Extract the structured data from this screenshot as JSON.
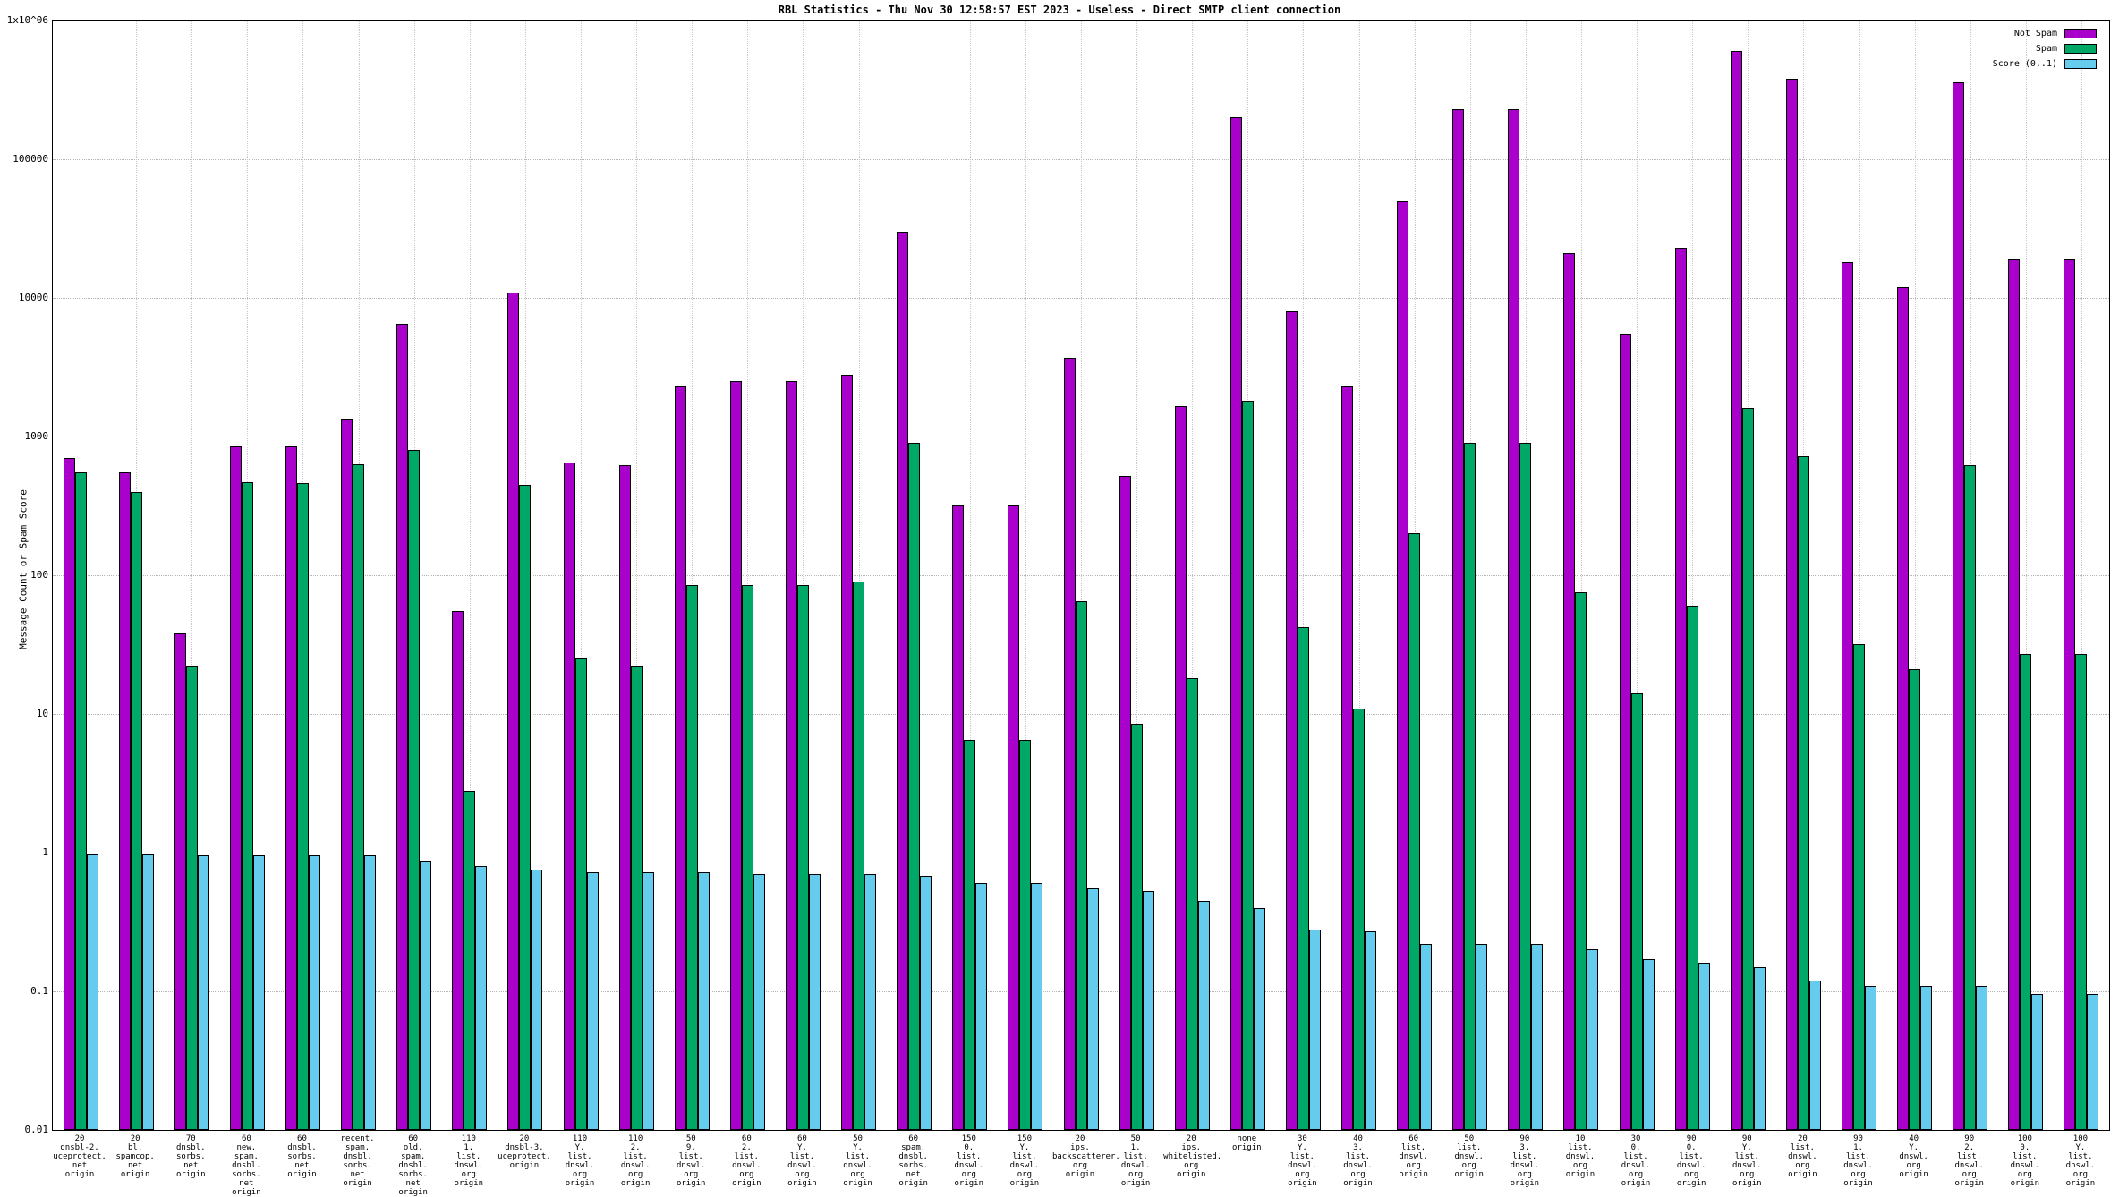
{
  "chart_data": {
    "type": "bar",
    "title": "RBL Statistics - Thu Nov 30 12:58:57 EST 2023 - Useless - Direct SMTP client connection",
    "ylabel": "Message Count or Spam Score",
    "xlabel": "",
    "y_scale": "log",
    "ylim": [
      0.01,
      1000000
    ],
    "ytick_labels": [
      "0.01",
      "0.1",
      "1",
      "10",
      "100",
      "1000",
      "10000",
      "100000",
      "1x10^06"
    ],
    "grid": true,
    "legend_position": "top-right",
    "categories": [
      [
        "20",
        "dnsbl-2.",
        "uceprotect.",
        "net",
        "origin"
      ],
      [
        "20",
        "bl.",
        "spamcop.",
        "net",
        "origin"
      ],
      [
        "70",
        "dnsbl.",
        "sorbs.",
        "net",
        "origin"
      ],
      [
        "60",
        "new.",
        "spam.",
        "dnsbl.",
        "sorbs.",
        "net",
        "origin"
      ],
      [
        "60",
        "dnsbl.",
        "sorbs.",
        "net",
        "origin"
      ],
      [
        "recent.",
        "spam.",
        "dnsbl.",
        "sorbs.",
        "net",
        "origin"
      ],
      [
        "60",
        "old.",
        "spam.",
        "dnsbl.",
        "sorbs.",
        "net",
        "origin"
      ],
      [
        "110",
        "1.",
        "list.",
        "dnswl.",
        "org",
        "origin"
      ],
      [
        "20",
        "dnsbl-3.",
        "uceprotect.",
        "origin"
      ],
      [
        "110",
        "Y.",
        "list.",
        "dnswl.",
        "org",
        "origin"
      ],
      [
        "110",
        "2.",
        "list.",
        "dnswl.",
        "org",
        "origin"
      ],
      [
        "50",
        "9.",
        "list.",
        "dnswl.",
        "org",
        "origin"
      ],
      [
        "60",
        "2.",
        "list.",
        "dnswl.",
        "org",
        "origin"
      ],
      [
        "60",
        "Y.",
        "list.",
        "dnswl.",
        "org",
        "origin"
      ],
      [
        "50",
        "Y.",
        "list.",
        "dnswl.",
        "org",
        "origin"
      ],
      [
        "60",
        "spam.",
        "dnsbl.",
        "sorbs.",
        "net",
        "origin"
      ],
      [
        "150",
        "0.",
        "list.",
        "dnswl.",
        "org",
        "origin"
      ],
      [
        "150",
        "Y.",
        "list.",
        "dnswl.",
        "org",
        "origin"
      ],
      [
        "20",
        "ips.",
        "backscatterer.",
        "org",
        "origin"
      ],
      [
        "50",
        "1.",
        "list.",
        "dnswl.",
        "org",
        "origin"
      ],
      [
        "20",
        "ips.",
        "whitelisted.",
        "org",
        "origin"
      ],
      [
        "none",
        "origin"
      ],
      [
        "30",
        "Y.",
        "list.",
        "dnswl.",
        "org",
        "origin"
      ],
      [
        "40",
        "3.",
        "list.",
        "dnswl.",
        "org",
        "origin"
      ],
      [
        "60",
        "list.",
        "dnswl.",
        "org",
        "origin"
      ],
      [
        "50",
        "list.",
        "dnswl.",
        "org",
        "origin"
      ],
      [
        "90",
        "3.",
        "list.",
        "dnswl.",
        "org",
        "origin"
      ],
      [
        "10",
        "list.",
        "dnswl.",
        "org",
        "origin"
      ],
      [
        "30",
        "0.",
        "list.",
        "dnswl.",
        "org",
        "origin"
      ],
      [
        "90",
        "0.",
        "list.",
        "dnswl.",
        "org",
        "origin"
      ],
      [
        "90",
        "Y.",
        "list.",
        "dnswl.",
        "org",
        "origin"
      ],
      [
        "20",
        "list.",
        "dnswl.",
        "org",
        "origin"
      ],
      [
        "90",
        "1.",
        "list.",
        "dnswl.",
        "org",
        "origin"
      ],
      [
        "40",
        "Y.",
        "dnswl.",
        "org",
        "origin"
      ],
      [
        "90",
        "2.",
        "list.",
        "dnswl.",
        "org",
        "origin"
      ],
      [
        "100",
        "0.",
        "list.",
        "dnswl.",
        "org",
        "origin"
      ],
      [
        "100",
        "Y.",
        "list.",
        "dnswl.",
        "org",
        "origin"
      ]
    ],
    "series": [
      {
        "name": "Not Spam",
        "color": "#aa00cc",
        "values": [
          700,
          550,
          38,
          850,
          850,
          1350,
          6500,
          55,
          11000,
          650,
          620,
          2300,
          2500,
          2500,
          2800,
          30000,
          320,
          320,
          3700,
          520,
          1650,
          200000,
          8000,
          2300,
          50000,
          230000,
          230000,
          21000,
          5500,
          23000,
          600000,
          380000,
          18000,
          12000,
          360000,
          19000,
          19000
        ]
      },
      {
        "name": "Spam",
        "color": "#00a868",
        "values": [
          550,
          400,
          22,
          470,
          460,
          630,
          800,
          2.8,
          450,
          25,
          22,
          85,
          85,
          85,
          90,
          900,
          6.5,
          6.5,
          65,
          8.5,
          18,
          1800,
          42,
          11,
          200,
          900,
          900,
          75,
          14,
          60,
          1600,
          720,
          32,
          21,
          620,
          27,
          27
        ]
      },
      {
        "name": "Score (0..1)",
        "color": "#66ccee",
        "values": [
          0.97,
          0.97,
          0.95,
          0.95,
          0.95,
          0.95,
          0.88,
          0.8,
          0.75,
          0.72,
          0.72,
          0.72,
          0.7,
          0.7,
          0.7,
          0.68,
          0.6,
          0.6,
          0.55,
          0.53,
          0.45,
          0.4,
          0.28,
          0.27,
          0.22,
          0.22,
          0.22,
          0.2,
          0.17,
          0.16,
          0.15,
          0.12,
          0.11,
          0.11,
          0.11,
          0.095,
          0.095
        ]
      }
    ]
  }
}
